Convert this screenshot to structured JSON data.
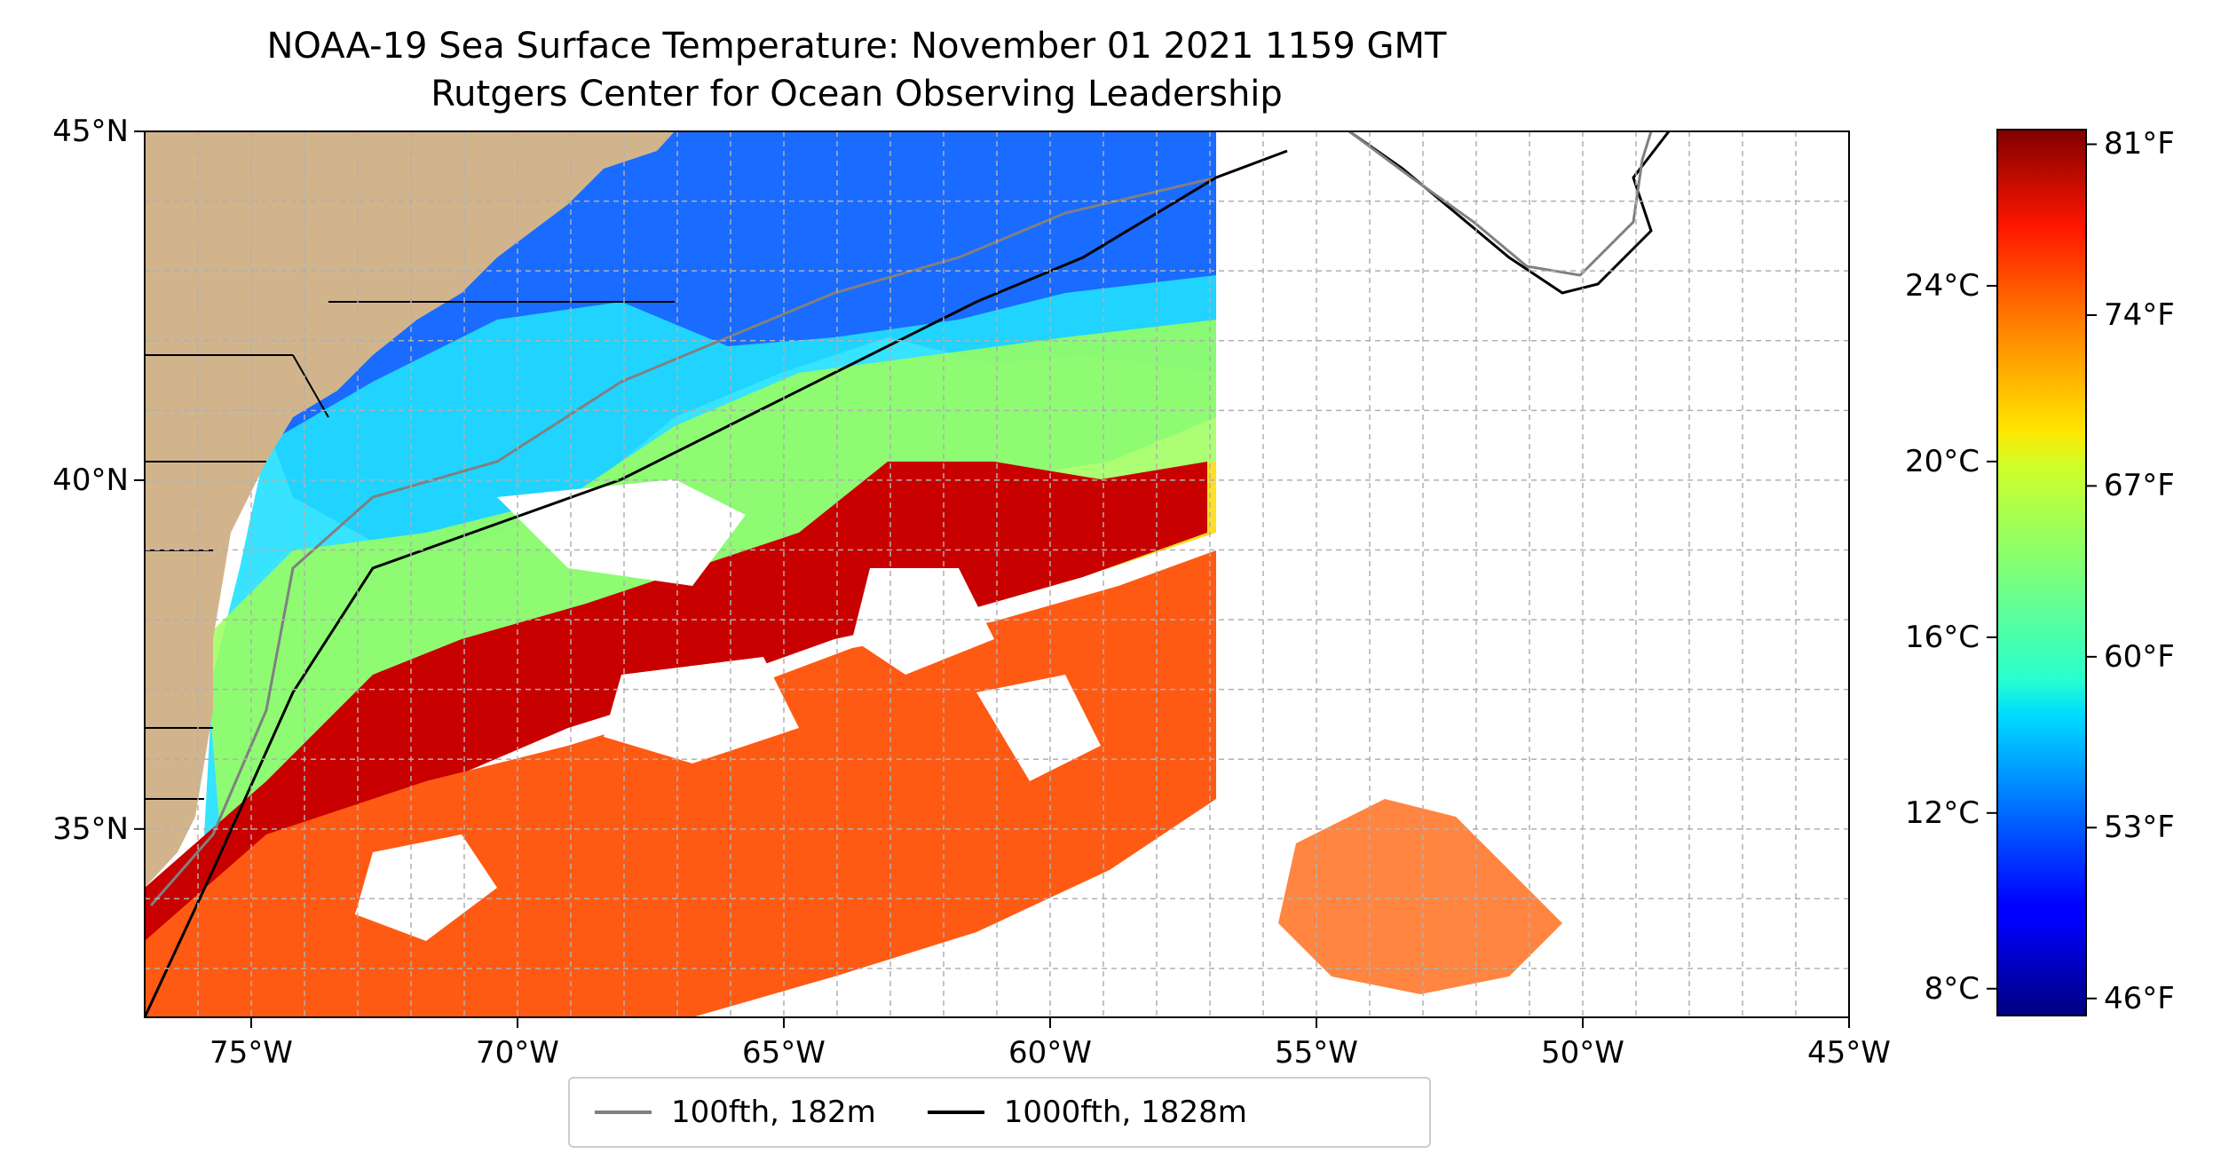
{
  "map": {
    "title": "NOAA-19 Sea Surface Temperature: November 01 2021 1159 GMT",
    "subtitle": "Rutgers Center for Ocean Observing Leadership",
    "lat_range": [
      32.3,
      45
    ],
    "lon_range": [
      -77,
      -45
    ],
    "lat_ticks": [
      {
        "value": 45,
        "label": "45°N"
      },
      {
        "value": 40,
        "label": "40°N"
      },
      {
        "value": 35,
        "label": "35°N"
      }
    ],
    "lon_ticks": [
      {
        "value": -75,
        "label": "75°W"
      },
      {
        "value": -70,
        "label": "70°W"
      },
      {
        "value": -65,
        "label": "65°W"
      },
      {
        "value": -60,
        "label": "60°W"
      },
      {
        "value": -55,
        "label": "55°W"
      },
      {
        "value": -50,
        "label": "50°W"
      },
      {
        "value": -45,
        "label": "45°W"
      }
    ],
    "grid": true,
    "colormap": "jet",
    "land_color": "#d2b48c"
  },
  "colorbar": {
    "celsius_ticks": [
      {
        "value": 24,
        "label": "24°C"
      },
      {
        "value": 20,
        "label": "20°C"
      },
      {
        "value": 16,
        "label": "16°C"
      },
      {
        "value": 12,
        "label": "12°C"
      },
      {
        "value": 8,
        "label": "8°C"
      }
    ],
    "fahrenheit_ticks": [
      {
        "value": 81,
        "label": "81°F"
      },
      {
        "value": 74,
        "label": "74°F"
      },
      {
        "value": 67,
        "label": "67°F"
      },
      {
        "value": 60,
        "label": "60°F"
      },
      {
        "value": 53,
        "label": "53°F"
      },
      {
        "value": 46,
        "label": "46°F"
      }
    ],
    "range_f": [
      45.3,
      81.6
    ]
  },
  "legend": {
    "items": [
      {
        "label": "100fth, 182m",
        "color": "#808080"
      },
      {
        "label": "1000fth, 1828m",
        "color": "#000000"
      }
    ]
  }
}
